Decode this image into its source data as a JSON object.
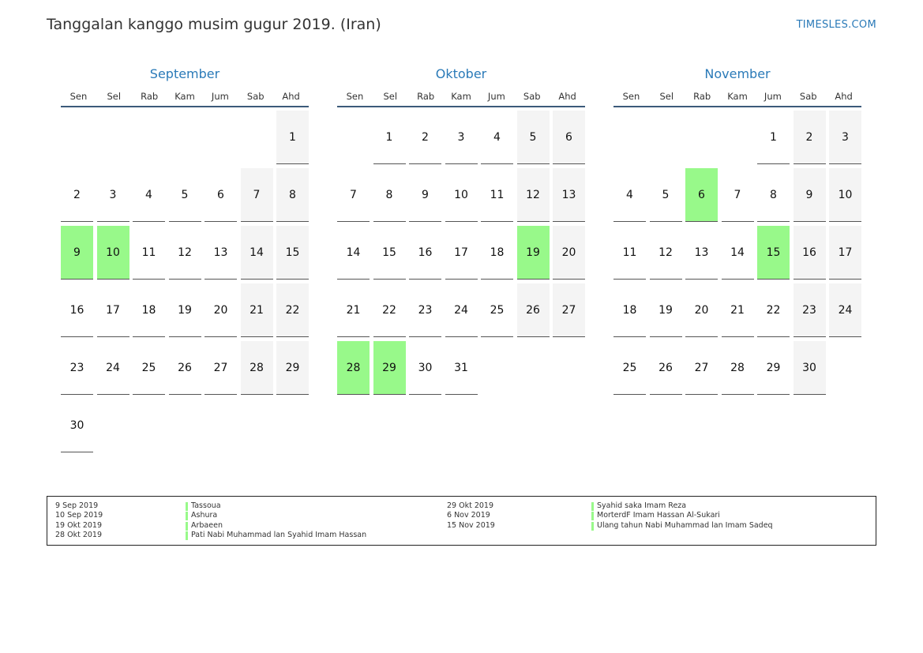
{
  "header": {
    "title": "Tanggalan kanggo musim gugur 2019. (Iran)",
    "brand": "TIMESLES.COM"
  },
  "weekday_labels": [
    "Sen",
    "Sel",
    "Rab",
    "Kam",
    "Jum",
    "Sab",
    "Ahd"
  ],
  "colors": {
    "accent": "#2a7ab8",
    "holiday": "#98f98a",
    "weekend": "#f4f4f4"
  },
  "months": [
    {
      "name": "September",
      "first_weekday_index": 6,
      "days": 30,
      "holidays": [
        9,
        10
      ]
    },
    {
      "name": "Oktober",
      "first_weekday_index": 1,
      "days": 31,
      "holidays": [
        19,
        28,
        29
      ]
    },
    {
      "name": "November",
      "first_weekday_index": 4,
      "days": 30,
      "holidays": [
        6,
        15
      ]
    }
  ],
  "legend": [
    {
      "date": "9 Sep 2019",
      "name": "Tassoua"
    },
    {
      "date": "10 Sep 2019",
      "name": "Ashura"
    },
    {
      "date": "19 Okt 2019",
      "name": "Arbaeen"
    },
    {
      "date": "28 Okt 2019",
      "name": "Pati Nabi Muhammad lan Syahid Imam Hassan"
    },
    {
      "date": "29 Okt 2019",
      "name": "Syahid saka Imam Reza"
    },
    {
      "date": "6 Nov 2019",
      "name": "MorterdF Imam Hassan Al-Sukari"
    },
    {
      "date": "15 Nov 2019",
      "name": "Ulang tahun Nabi Muhammad lan Imam Sadeq"
    }
  ]
}
